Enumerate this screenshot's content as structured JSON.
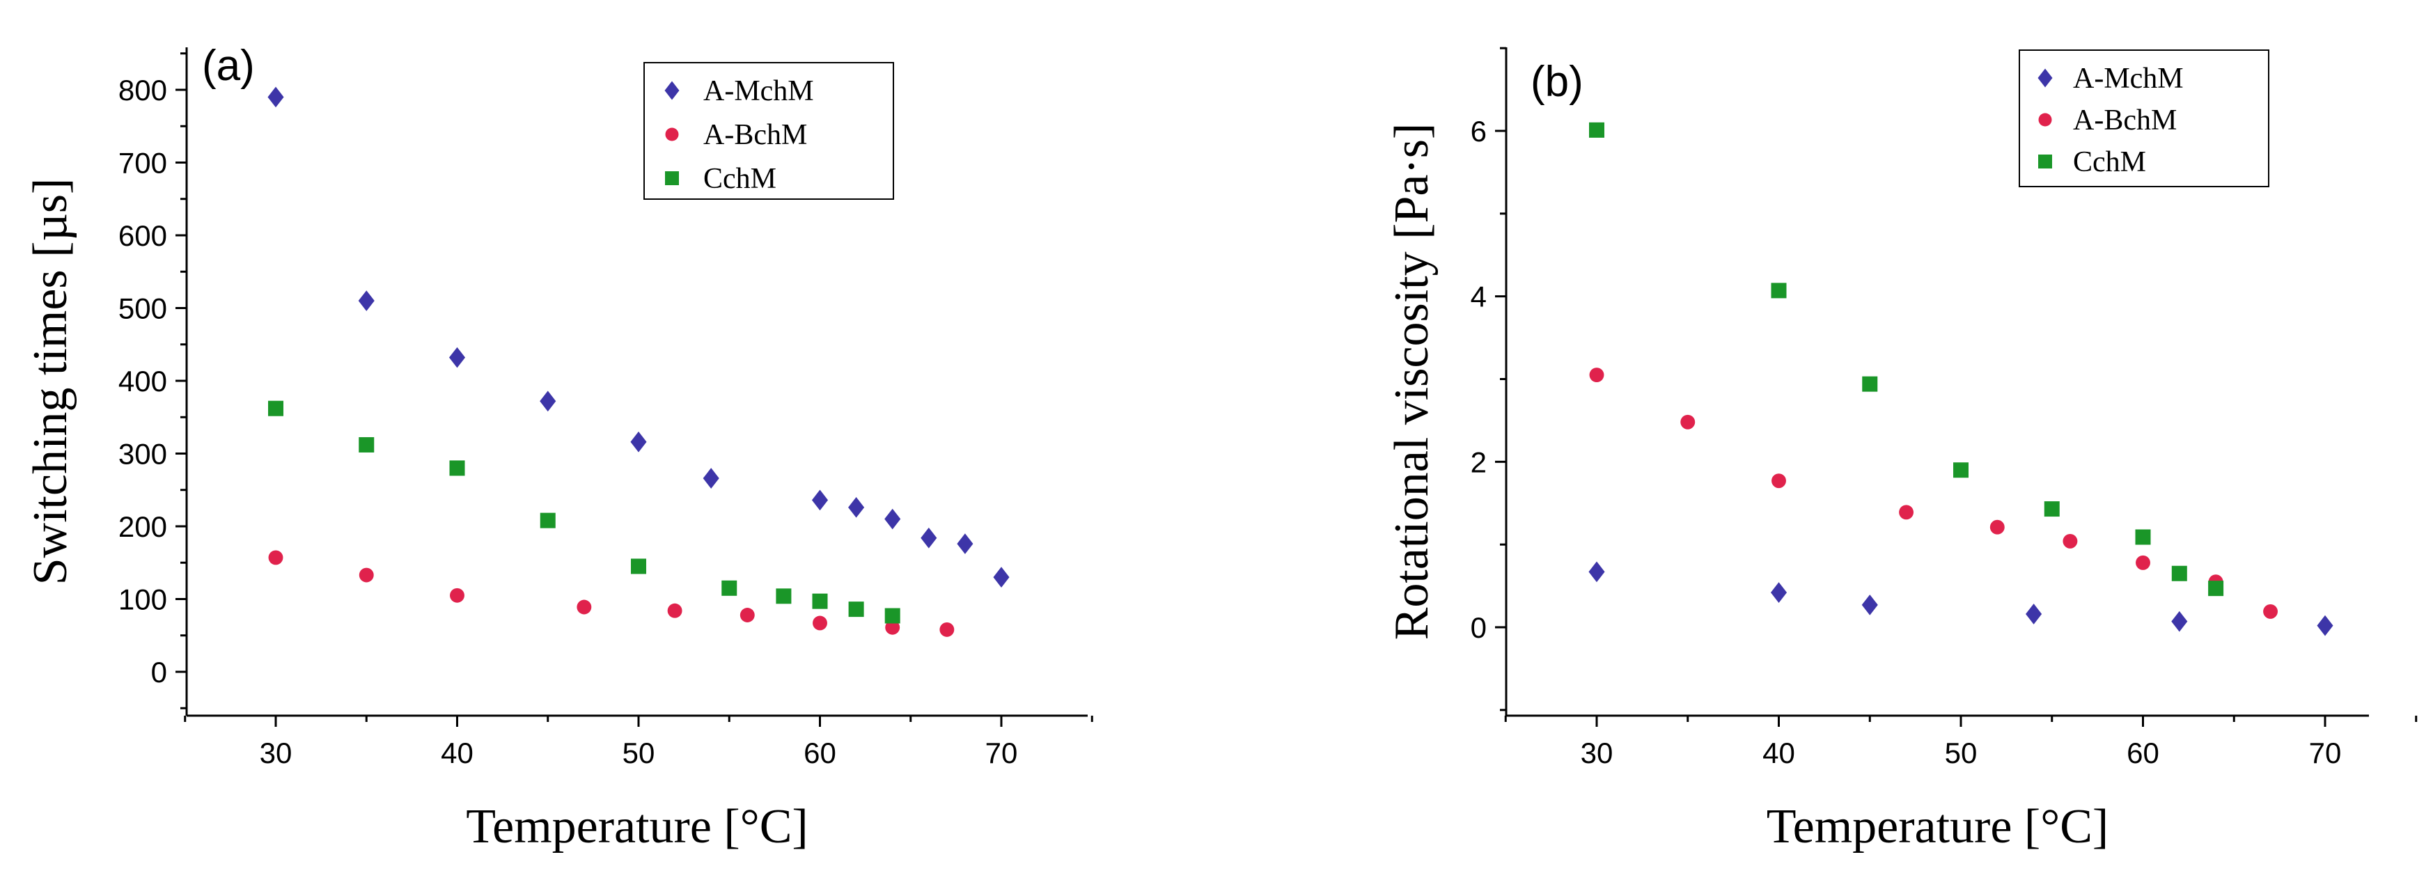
{
  "colors": {
    "A-MchM": "#3d35a8",
    "A-BchM": "#e0224c",
    "CchM": "#1a9628"
  },
  "chart_data": [
    {
      "type": "scatter",
      "panel_label": "(a)",
      "xlabel": "Temperature [°C]",
      "ylabel": "Switching times [µs]",
      "xlim": [
        25,
        75
      ],
      "ylim": [
        -50,
        850
      ],
      "xticks": [
        "30",
        "40",
        "50",
        "60",
        "70"
      ],
      "yticks": [
        "0",
        "100",
        "200",
        "300",
        "400",
        "500",
        "600",
        "700",
        "800"
      ],
      "legend_position": "top-right",
      "series": [
        {
          "name": "A-MchM",
          "marker": "diamond",
          "x": [
            30,
            35,
            40,
            45,
            50,
            54,
            60,
            62,
            64,
            66,
            68,
            70
          ],
          "y": [
            790,
            510,
            432,
            372,
            316,
            266,
            236,
            226,
            210,
            184,
            176,
            130
          ]
        },
        {
          "name": "A-BchM",
          "marker": "circle",
          "x": [
            30,
            35,
            40,
            47,
            52,
            56,
            60,
            64,
            67
          ],
          "y": [
            157,
            133,
            105,
            89,
            84,
            78,
            67,
            61,
            58
          ]
        },
        {
          "name": "CchM",
          "marker": "square",
          "x": [
            30,
            35,
            40,
            45,
            50,
            55,
            58,
            60,
            62,
            64
          ],
          "y": [
            362,
            312,
            280,
            208,
            145,
            115,
            104,
            97,
            86,
            77
          ]
        }
      ]
    },
    {
      "type": "scatter",
      "panel_label": "(b)",
      "xlabel": "Temperature [°C]",
      "ylabel": "Rotational viscosity [Pa·s]",
      "xlim": [
        25,
        75
      ],
      "ylim": [
        -1,
        7
      ],
      "xticks": [
        "30",
        "40",
        "50",
        "60",
        "70"
      ],
      "yticks": [
        "0",
        "2",
        "4",
        "6"
      ],
      "legend_position": "top-right",
      "series": [
        {
          "name": "A-MchM",
          "marker": "diamond",
          "x": [
            30,
            40,
            45,
            54,
            62,
            70
          ],
          "y": [
            0.67,
            0.42,
            0.27,
            0.16,
            0.07,
            0.02
          ]
        },
        {
          "name": "A-BchM",
          "marker": "circle",
          "x": [
            30,
            35,
            40,
            47,
            52,
            56,
            60,
            64,
            67
          ],
          "y": [
            3.05,
            2.48,
            1.77,
            1.39,
            1.21,
            1.04,
            0.78,
            0.55,
            0.19
          ]
        },
        {
          "name": "CchM",
          "marker": "square",
          "x": [
            30,
            40,
            45,
            50,
            55,
            60,
            62,
            64
          ],
          "y": [
            6.01,
            4.07,
            2.94,
            1.9,
            1.43,
            1.09,
            0.65,
            0.47
          ]
        }
      ]
    }
  ]
}
